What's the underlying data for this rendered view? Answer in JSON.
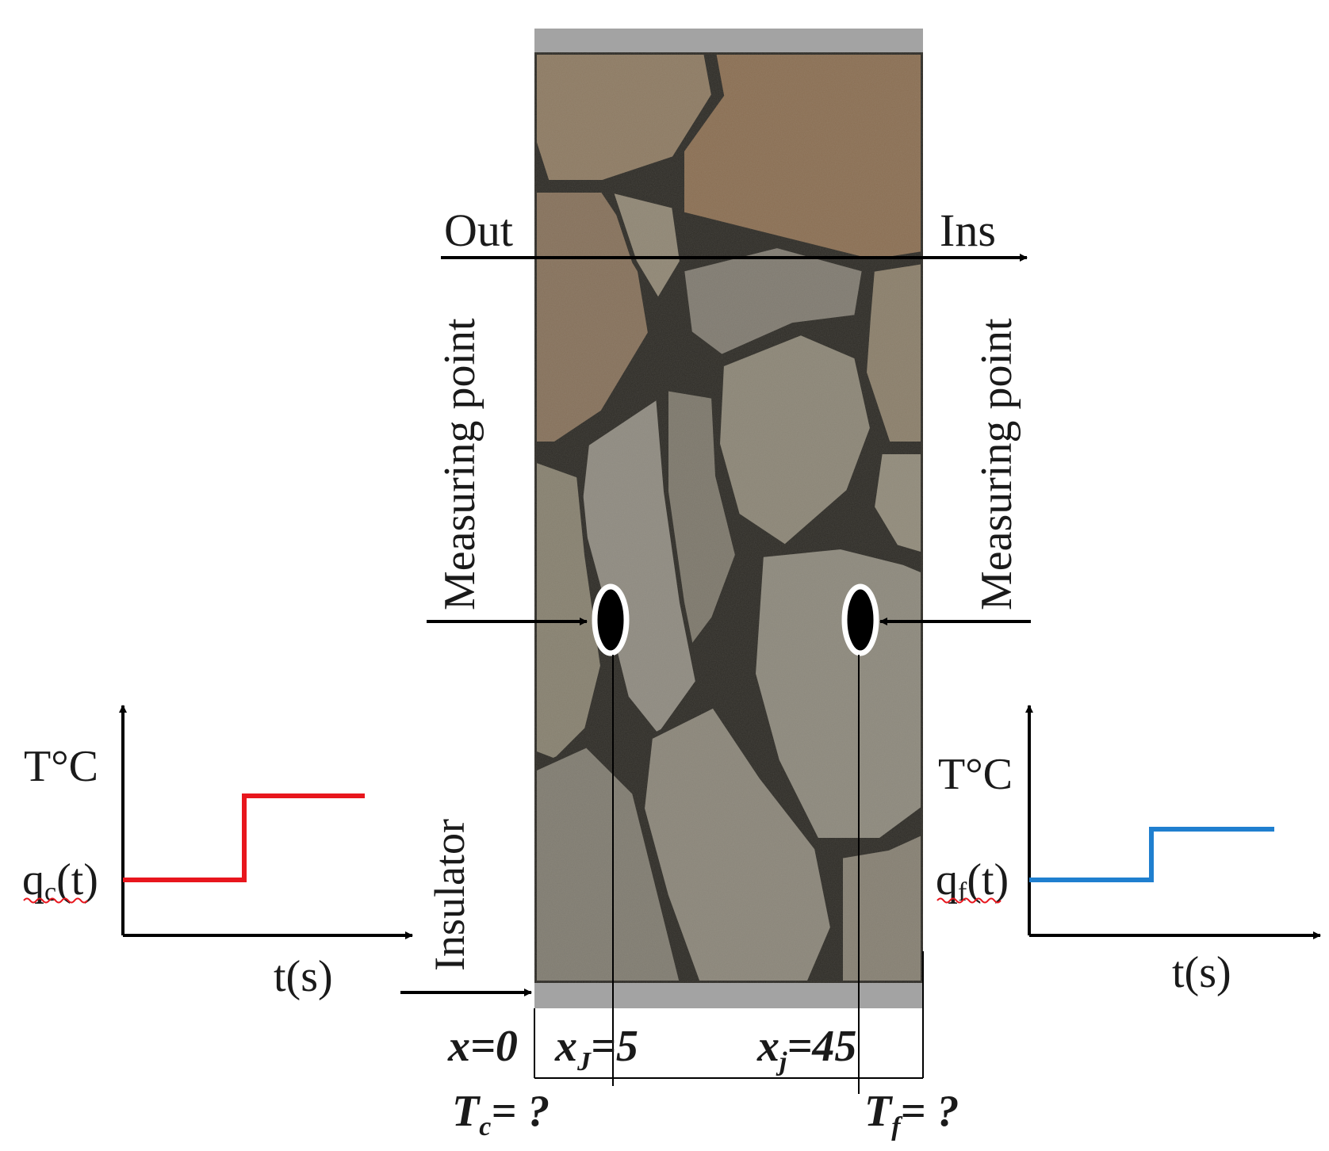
{
  "top_arrow": {
    "left_label": "Out",
    "right_label": "Ins"
  },
  "measuring_points": {
    "left_label": "Measuring point",
    "right_label": "Measuring point"
  },
  "insulator_label": "Insulator",
  "left_plot": {
    "y_axis_label": "T°C",
    "x_axis_label": "t(s)",
    "signal_label_main": "q",
    "signal_label_sub": "c",
    "signal_label_tail": "(t)",
    "line_color": "#e8161d"
  },
  "right_plot": {
    "y_axis_label": "T°C",
    "x_axis_label": "t(s)",
    "signal_label_main": "q",
    "signal_label_sub": "f",
    "signal_label_tail": "(t)",
    "line_color": "#1f7fcf"
  },
  "dimension_labels": {
    "x0": {
      "main": "x=0"
    },
    "xj_left": {
      "main": "x",
      "sub": "J",
      "tail": "=5"
    },
    "xj_right": {
      "main": "x",
      "sub": "j",
      "tail": "=45"
    }
  },
  "unknowns": {
    "tc": {
      "main": "T",
      "sub": "c",
      "tail": "= ?"
    },
    "tf": {
      "main": "T",
      "sub": "f",
      "tail": "= ?"
    }
  },
  "colors": {
    "insulator": "#a3a3a3",
    "wall_base": "#6f6a5f",
    "stone": "#8b877c",
    "stone_brown": "#8a6a4c",
    "mortar": "#2c2a25"
  }
}
